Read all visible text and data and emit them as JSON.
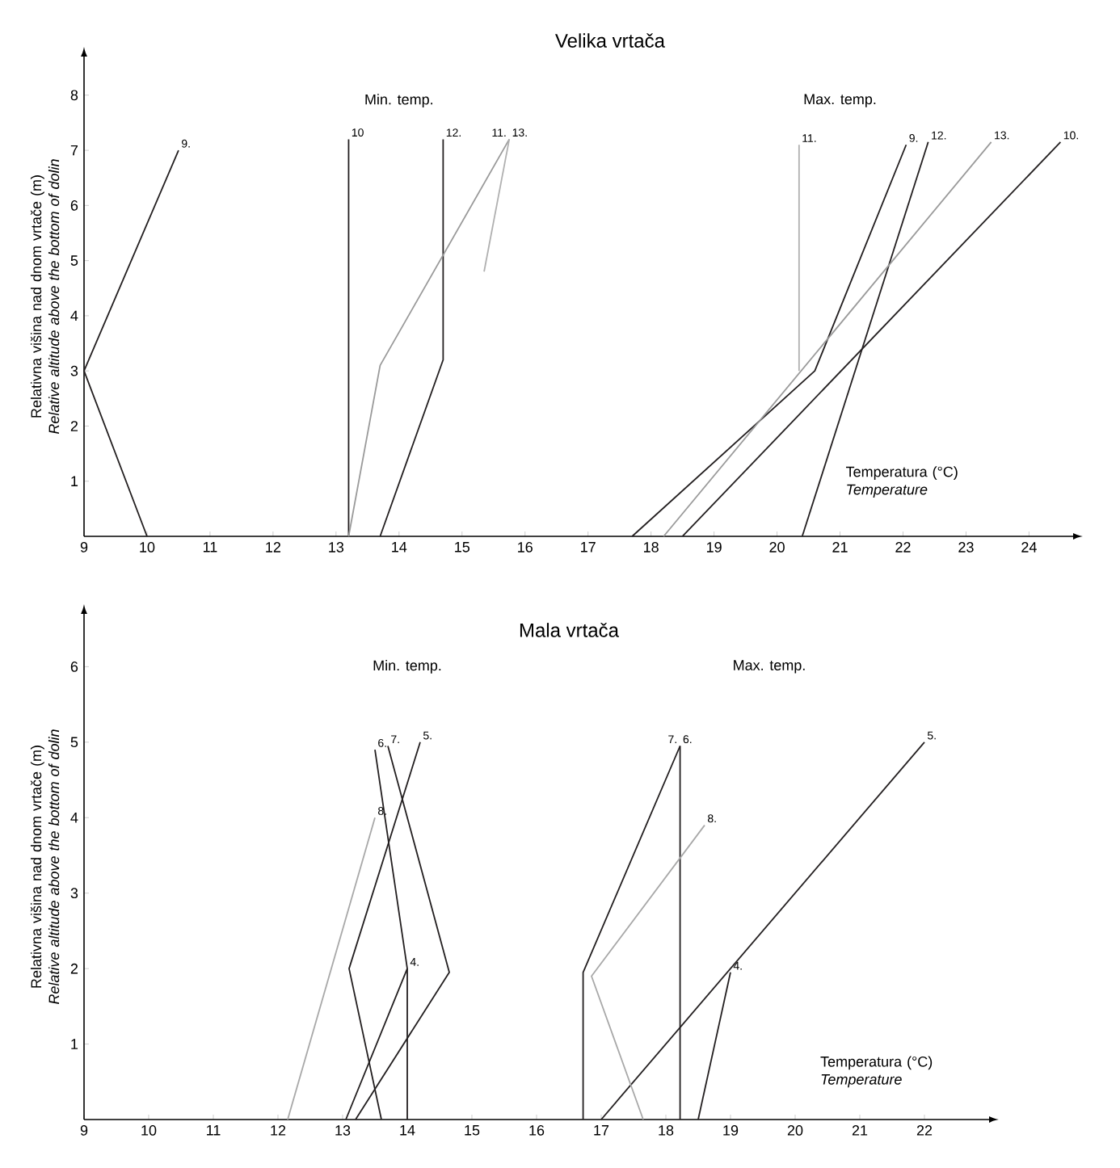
{
  "chart_data": [
    {
      "type": "line",
      "title": "Velika vrtača",
      "xlabel": "Temperatura (°C) *Temperature*",
      "ylabel": "Relativna višina nad dnom vrtače (m) *Relative altitude above the bottom of dolin*",
      "annotations": [
        "Min. temp.",
        "Max. temp."
      ],
      "xlim": [
        9,
        24.7
      ],
      "ylim": [
        0,
        8.7
      ],
      "xticks": [
        9,
        10,
        11,
        12,
        13,
        14,
        15,
        16,
        17,
        18,
        19,
        20,
        21,
        22,
        23,
        24
      ],
      "yticks": [
        1,
        2,
        3,
        4,
        5,
        6,
        7,
        8
      ],
      "grid": false,
      "legend": false,
      "marker": "none",
      "series": [
        {
          "name": "9.",
          "color": "#231f20",
          "x": [
            10.0,
            9,
            10.5
          ],
          "values": [
            0,
            3,
            7
          ]
        },
        {
          "name": "10",
          "color": "#231f20",
          "x": [
            13.2,
            13.2
          ],
          "values": [
            0,
            7.2
          ]
        },
        {
          "name": "12.",
          "color": "#231f20",
          "x": [
            13.7,
            14.7,
            14.7
          ],
          "values": [
            0,
            3.2,
            7.2
          ]
        },
        {
          "name": "13.",
          "color": "#9a9a9a",
          "x": [
            13.2,
            13.7,
            15.75
          ],
          "values": [
            0,
            3.1,
            7.2
          ]
        },
        {
          "name": "11.",
          "color": "#b0b0b0",
          "x": [
            15.35,
            15.75
          ],
          "values": [
            4.8,
            7.2
          ]
        },
        {
          "name": "9.",
          "color": "#231f20",
          "x": [
            17.7,
            20.6,
            22.05
          ],
          "values": [
            0,
            3.0,
            7.1
          ]
        },
        {
          "name": "10.",
          "color": "#231f20",
          "x": [
            18.5,
            24.5
          ],
          "values": [
            0,
            7.15
          ]
        },
        {
          "name": "11.",
          "color": "#b0b0b0",
          "x": [
            20.35,
            20.35
          ],
          "values": [
            3.0,
            7.1
          ]
        },
        {
          "name": "12.",
          "color": "#231f20",
          "x": [
            20.4,
            22.4
          ],
          "values": [
            0,
            7.15
          ]
        },
        {
          "name": "13.",
          "color": "#9a9a9a",
          "x": [
            18.2,
            23.4
          ],
          "values": [
            0,
            7.15
          ]
        }
      ]
    },
    {
      "type": "line",
      "title": "Mala vrtača",
      "xlabel": "Temperatura (°C) *Temperature*",
      "ylabel": "Relativna višina nad dnom vrtače (m) *Relative altitude above the bottom of dolin*",
      "annotations": [
        "Min. temp.",
        "Max. temp."
      ],
      "xlim": [
        9,
        23
      ],
      "ylim": [
        0,
        6.7
      ],
      "xticks": [
        9,
        10,
        11,
        12,
        13,
        14,
        15,
        16,
        17,
        18,
        19,
        20,
        21,
        22
      ],
      "yticks": [
        1,
        2,
        3,
        4,
        5,
        6
      ],
      "grid": false,
      "legend": false,
      "marker": "none",
      "series": [
        {
          "name": "4.",
          "color": "#231f20",
          "x": [
            14.0,
            14.0
          ],
          "values": [
            0,
            2.0
          ]
        },
        {
          "name": "5.",
          "color": "#231f20",
          "x": [
            13.6,
            13.1,
            14.2
          ],
          "values": [
            0,
            2.0,
            5.0
          ]
        },
        {
          "name": "6.",
          "color": "#231f20",
          "x": [
            13.05,
            14.0,
            13.5
          ],
          "values": [
            0,
            2.0,
            4.9
          ]
        },
        {
          "name": "7.",
          "color": "#231f20",
          "x": [
            13.2,
            14.65,
            13.7
          ],
          "values": [
            0,
            1.95,
            4.95
          ]
        },
        {
          "name": "8.",
          "color": "#a8a8a8",
          "x": [
            12.15,
            13.5
          ],
          "values": [
            0,
            4.0
          ]
        },
        {
          "name": "4.",
          "color": "#231f20",
          "x": [
            18.5,
            19.0
          ],
          "values": [
            0,
            1.95
          ]
        },
        {
          "name": "5.",
          "color": "#231f20",
          "x": [
            17.0,
            22.0
          ],
          "values": [
            0,
            5.0
          ]
        },
        {
          "name": "6.",
          "color": "#231f20",
          "x": [
            18.22,
            18.22
          ],
          "values": [
            0,
            4.95
          ]
        },
        {
          "name": "7.",
          "color": "#231f20",
          "x": [
            16.72,
            16.72,
            18.22
          ],
          "values": [
            0,
            1.95,
            4.95
          ]
        },
        {
          "name": "8.",
          "color": "#a8a8a8",
          "x": [
            17.65,
            16.85,
            18.6
          ],
          "values": [
            0,
            1.9,
            3.9
          ]
        }
      ]
    }
  ]
}
